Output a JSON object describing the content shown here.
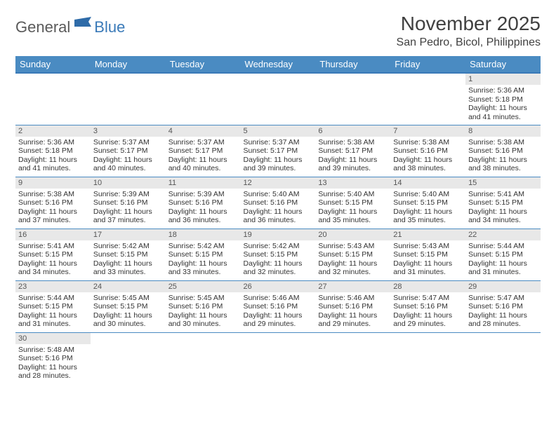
{
  "logo": {
    "text1": "General",
    "text2": "Blue"
  },
  "header": {
    "title": "November 2025",
    "location": "San Pedro, Bicol, Philippines"
  },
  "colors": {
    "header_bg": "#4a8bc2",
    "header_border": "#3a7ab8",
    "daynum_bg": "#e8e8e8",
    "cell_border": "#4a8bc2",
    "text": "#333333",
    "title": "#404040"
  },
  "weekdays": [
    "Sunday",
    "Monday",
    "Tuesday",
    "Wednesday",
    "Thursday",
    "Friday",
    "Saturday"
  ],
  "weeks": [
    [
      null,
      null,
      null,
      null,
      null,
      null,
      {
        "n": "1",
        "sr": "5:36 AM",
        "ss": "5:18 PM",
        "dl": "11 hours and 41 minutes."
      }
    ],
    [
      {
        "n": "2",
        "sr": "5:36 AM",
        "ss": "5:18 PM",
        "dl": "11 hours and 41 minutes."
      },
      {
        "n": "3",
        "sr": "5:37 AM",
        "ss": "5:17 PM",
        "dl": "11 hours and 40 minutes."
      },
      {
        "n": "4",
        "sr": "5:37 AM",
        "ss": "5:17 PM",
        "dl": "11 hours and 40 minutes."
      },
      {
        "n": "5",
        "sr": "5:37 AM",
        "ss": "5:17 PM",
        "dl": "11 hours and 39 minutes."
      },
      {
        "n": "6",
        "sr": "5:38 AM",
        "ss": "5:17 PM",
        "dl": "11 hours and 39 minutes."
      },
      {
        "n": "7",
        "sr": "5:38 AM",
        "ss": "5:16 PM",
        "dl": "11 hours and 38 minutes."
      },
      {
        "n": "8",
        "sr": "5:38 AM",
        "ss": "5:16 PM",
        "dl": "11 hours and 38 minutes."
      }
    ],
    [
      {
        "n": "9",
        "sr": "5:38 AM",
        "ss": "5:16 PM",
        "dl": "11 hours and 37 minutes."
      },
      {
        "n": "10",
        "sr": "5:39 AM",
        "ss": "5:16 PM",
        "dl": "11 hours and 37 minutes."
      },
      {
        "n": "11",
        "sr": "5:39 AM",
        "ss": "5:16 PM",
        "dl": "11 hours and 36 minutes."
      },
      {
        "n": "12",
        "sr": "5:40 AM",
        "ss": "5:16 PM",
        "dl": "11 hours and 36 minutes."
      },
      {
        "n": "13",
        "sr": "5:40 AM",
        "ss": "5:15 PM",
        "dl": "11 hours and 35 minutes."
      },
      {
        "n": "14",
        "sr": "5:40 AM",
        "ss": "5:15 PM",
        "dl": "11 hours and 35 minutes."
      },
      {
        "n": "15",
        "sr": "5:41 AM",
        "ss": "5:15 PM",
        "dl": "11 hours and 34 minutes."
      }
    ],
    [
      {
        "n": "16",
        "sr": "5:41 AM",
        "ss": "5:15 PM",
        "dl": "11 hours and 34 minutes."
      },
      {
        "n": "17",
        "sr": "5:42 AM",
        "ss": "5:15 PM",
        "dl": "11 hours and 33 minutes."
      },
      {
        "n": "18",
        "sr": "5:42 AM",
        "ss": "5:15 PM",
        "dl": "11 hours and 33 minutes."
      },
      {
        "n": "19",
        "sr": "5:42 AM",
        "ss": "5:15 PM",
        "dl": "11 hours and 32 minutes."
      },
      {
        "n": "20",
        "sr": "5:43 AM",
        "ss": "5:15 PM",
        "dl": "11 hours and 32 minutes."
      },
      {
        "n": "21",
        "sr": "5:43 AM",
        "ss": "5:15 PM",
        "dl": "11 hours and 31 minutes."
      },
      {
        "n": "22",
        "sr": "5:44 AM",
        "ss": "5:15 PM",
        "dl": "11 hours and 31 minutes."
      }
    ],
    [
      {
        "n": "23",
        "sr": "5:44 AM",
        "ss": "5:15 PM",
        "dl": "11 hours and 31 minutes."
      },
      {
        "n": "24",
        "sr": "5:45 AM",
        "ss": "5:15 PM",
        "dl": "11 hours and 30 minutes."
      },
      {
        "n": "25",
        "sr": "5:45 AM",
        "ss": "5:16 PM",
        "dl": "11 hours and 30 minutes."
      },
      {
        "n": "26",
        "sr": "5:46 AM",
        "ss": "5:16 PM",
        "dl": "11 hours and 29 minutes."
      },
      {
        "n": "27",
        "sr": "5:46 AM",
        "ss": "5:16 PM",
        "dl": "11 hours and 29 minutes."
      },
      {
        "n": "28",
        "sr": "5:47 AM",
        "ss": "5:16 PM",
        "dl": "11 hours and 29 minutes."
      },
      {
        "n": "29",
        "sr": "5:47 AM",
        "ss": "5:16 PM",
        "dl": "11 hours and 28 minutes."
      }
    ],
    [
      {
        "n": "30",
        "sr": "5:48 AM",
        "ss": "5:16 PM",
        "dl": "11 hours and 28 minutes."
      },
      null,
      null,
      null,
      null,
      null,
      null
    ]
  ],
  "labels": {
    "sunrise": "Sunrise: ",
    "sunset": "Sunset: ",
    "daylight": "Daylight: "
  }
}
